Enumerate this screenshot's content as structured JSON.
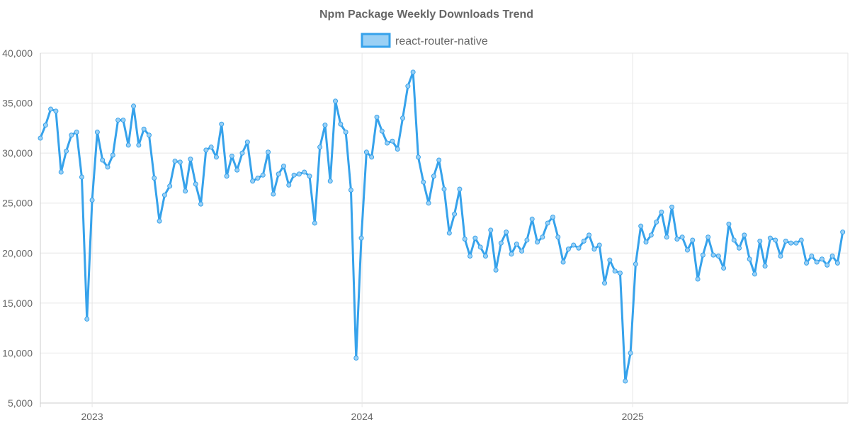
{
  "chart_data": {
    "type": "line",
    "title": "Npm Package Weekly Downloads Trend",
    "xlabel": "",
    "ylabel": "",
    "ylim": [
      5000,
      40000
    ],
    "yticks": [
      5000,
      10000,
      15000,
      20000,
      25000,
      30000,
      35000,
      40000
    ],
    "ytick_labels": [
      "5,000",
      "10,000",
      "15,000",
      "20,000",
      "25,000",
      "30,000",
      "35,000",
      "40,000"
    ],
    "x_start": "2022-10-23",
    "x_end": "2025-10-19",
    "x_interval_days": 7,
    "xticks": [
      "2023-01-01",
      "2024-01-01",
      "2025-01-01"
    ],
    "xtick_labels": [
      "2023",
      "2024",
      "2025"
    ],
    "legend_position": "top-center",
    "grid": true,
    "series": [
      {
        "name": "react-router-native",
        "color": "#36a2eb",
        "fill_color": "#9ad0f5",
        "values": [
          31500,
          32800,
          34400,
          34200,
          28100,
          30200,
          31800,
          32100,
          27600,
          13400,
          25300,
          32100,
          29300,
          28600,
          29800,
          33300,
          33300,
          30800,
          34700,
          30800,
          32400,
          31800,
          27500,
          23200,
          25800,
          26700,
          29200,
          29100,
          26200,
          29400,
          26900,
          24900,
          30300,
          30600,
          29600,
          32900,
          27700,
          29700,
          28300,
          30000,
          31100,
          27200,
          27500,
          27800,
          30100,
          25900,
          27900,
          28700,
          26800,
          27800,
          27900,
          28100,
          27700,
          23000,
          30600,
          32800,
          27200,
          35200,
          32900,
          32100,
          26300,
          9500,
          21500,
          30100,
          29600,
          33600,
          32200,
          31000,
          31200,
          30400,
          33500,
          36700,
          38100,
          29600,
          27100,
          25000,
          27700,
          29300,
          26400,
          22000,
          23900,
          26400,
          21400,
          19700,
          21500,
          20600,
          19700,
          22300,
          18300,
          21000,
          22100,
          19900,
          20900,
          20200,
          21300,
          23400,
          21100,
          21600,
          23000,
          23600,
          21600,
          19100,
          20400,
          20800,
          20500,
          21200,
          21800,
          20400,
          20800,
          17000,
          19300,
          18200,
          18000,
          7200,
          10000,
          18900,
          22700,
          21100,
          21800,
          23100,
          24100,
          21600,
          24600,
          21400,
          21600,
          20300,
          21300,
          17400,
          19800,
          21600,
          19800,
          19700,
          18500,
          22900,
          21300,
          20500,
          21800,
          19400,
          17900,
          21200,
          18700,
          21500,
          21300,
          19700,
          21200,
          21000,
          21000,
          21300,
          19000,
          19700,
          19100,
          19400,
          18800,
          19700,
          19000,
          22100
        ]
      }
    ]
  }
}
